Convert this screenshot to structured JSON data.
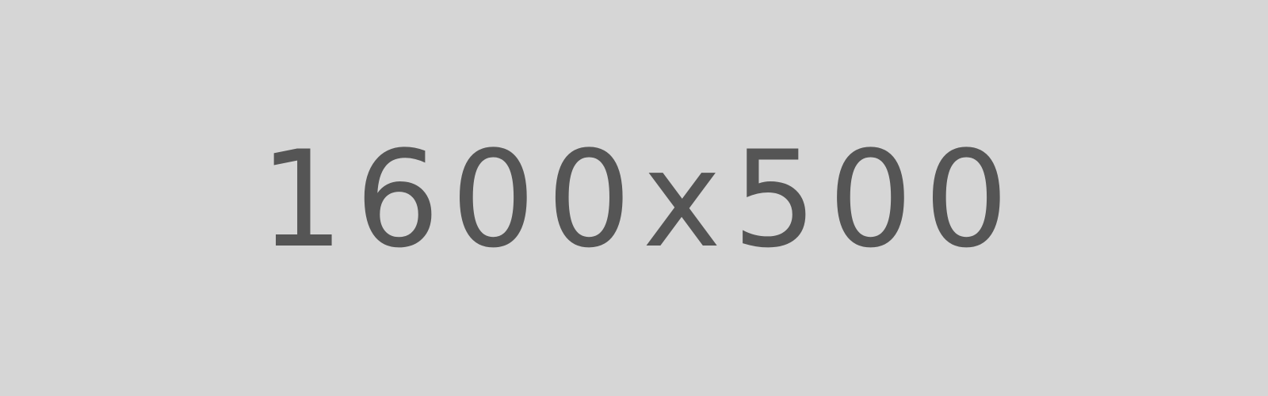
{
  "placeholder": {
    "label": "1600x500",
    "background_color": "#d6d6d6",
    "text_color": "#555555"
  }
}
